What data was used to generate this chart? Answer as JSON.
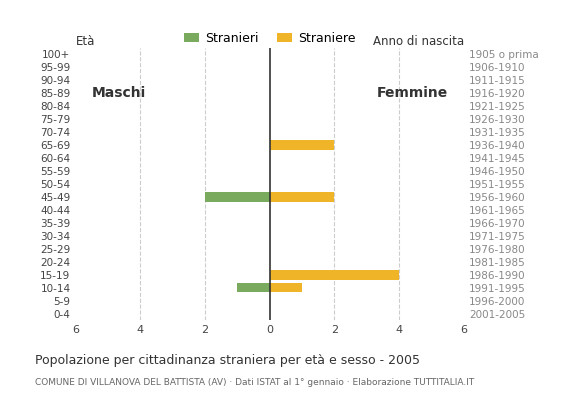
{
  "age_groups": [
    "0-4",
    "5-9",
    "10-14",
    "15-19",
    "20-24",
    "25-29",
    "30-34",
    "35-39",
    "40-44",
    "45-49",
    "50-54",
    "55-59",
    "60-64",
    "65-69",
    "70-74",
    "75-79",
    "80-84",
    "85-89",
    "90-94",
    "95-99",
    "100+"
  ],
  "birth_years": [
    "2001-2005",
    "1996-2000",
    "1991-1995",
    "1986-1990",
    "1981-1985",
    "1976-1980",
    "1971-1975",
    "1966-1970",
    "1961-1965",
    "1956-1960",
    "1951-1955",
    "1946-1950",
    "1941-1945",
    "1936-1940",
    "1931-1935",
    "1926-1930",
    "1921-1925",
    "1916-1920",
    "1911-1915",
    "1906-1910",
    "1905 o prima"
  ],
  "males": [
    0,
    0,
    1,
    0,
    0,
    0,
    0,
    0,
    0,
    2,
    0,
    0,
    0,
    0,
    0,
    0,
    0,
    0,
    0,
    0,
    0
  ],
  "females": [
    0,
    0,
    1,
    4,
    0,
    0,
    0,
    0,
    0,
    2,
    0,
    0,
    0,
    2,
    0,
    0,
    0,
    0,
    0,
    0,
    0
  ],
  "male_color": "#7aaa5e",
  "female_color": "#f0b429",
  "xlim": 6,
  "title": "Popolazione per cittadinanza straniera per età e sesso - 2005",
  "subtitle": "COMUNE DI VILLANOVA DEL BATTISTA (AV) · Dati ISTAT al 1° gennaio · Elaborazione TUTTITALIA.IT",
  "legend_male": "Stranieri",
  "legend_female": "Straniere",
  "maschi_label": "Maschi",
  "femmine_label": "Femmine",
  "eta_label": "Età",
  "anno_label": "Anno di nascita",
  "background_color": "#ffffff",
  "grid_color": "#cccccc"
}
